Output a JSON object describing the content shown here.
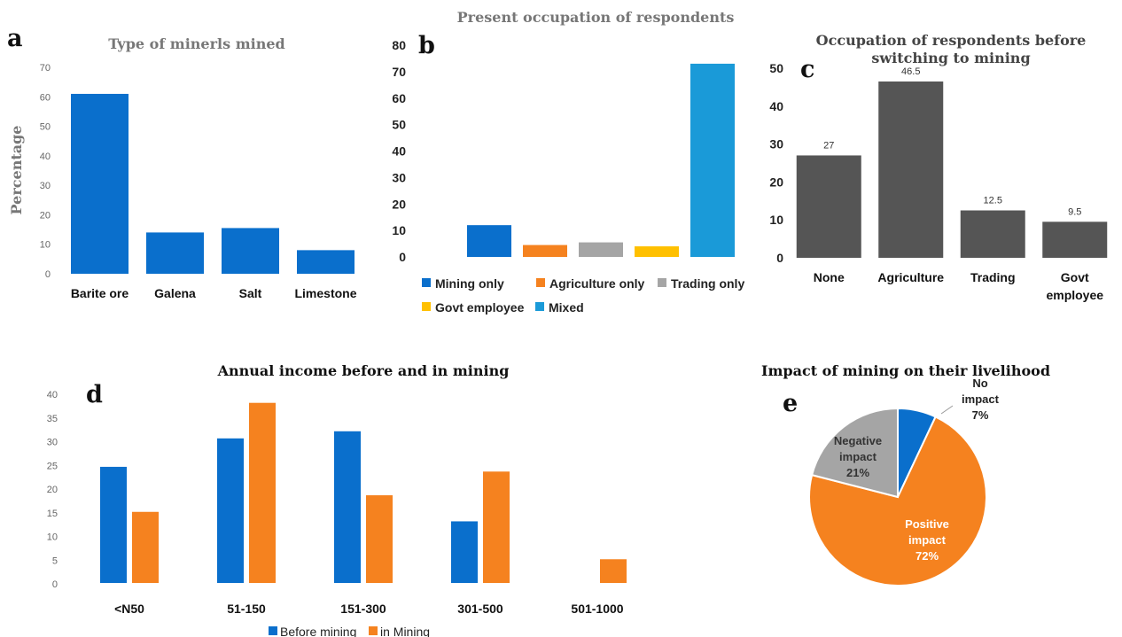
{
  "panels": {
    "a": "a",
    "b": "b",
    "c": "c",
    "d": "d",
    "e": "e"
  },
  "colors": {
    "blue": "#0a6fcc",
    "orange": "#f5821f",
    "gray": "#a5a5a5",
    "yellow": "#ffc000",
    "lightblue": "#1a9ad8",
    "dark": "#555555"
  },
  "chart_data": [
    {
      "id": "a",
      "type": "bar",
      "title": "Type of minerls mined",
      "ylabel": "Percentage",
      "categories": [
        "Barite ore",
        "Galena",
        "Salt",
        "Limestone"
      ],
      "values": [
        61,
        14,
        15.5,
        8
      ],
      "yticks": [
        "0",
        "10",
        "20",
        "30",
        "40",
        "50",
        "60",
        "70"
      ],
      "ylim": [
        0,
        70
      ],
      "color": "#0a6fcc"
    },
    {
      "id": "b",
      "type": "bar",
      "title": "Present occupation of respondents",
      "series": [
        {
          "name": "Mining only",
          "value": 12,
          "color": "#0a6fcc"
        },
        {
          "name": "Agriculture only",
          "value": 4.5,
          "color": "#f5821f"
        },
        {
          "name": "Trading only",
          "value": 5.5,
          "color": "#a5a5a5"
        },
        {
          "name": "Govt employee",
          "value": 4,
          "color": "#ffc000"
        },
        {
          "name": "Mixed",
          "value": 73,
          "color": "#1a9ad8"
        }
      ],
      "yticks": [
        "0",
        "10",
        "20",
        "30",
        "40",
        "50",
        "60",
        "70",
        "80"
      ],
      "ylim": [
        0,
        80
      ]
    },
    {
      "id": "c",
      "type": "bar",
      "title_lines": [
        "Occupation of respondents before",
        "switching to mining"
      ],
      "categories": [
        [
          "None"
        ],
        [
          "Agriculture"
        ],
        [
          "Trading"
        ],
        [
          "Govt",
          "employee"
        ]
      ],
      "values": [
        27,
        46.5,
        12.5,
        9.5
      ],
      "data_labels": [
        "27",
        "46.5",
        "12.5",
        "9.5"
      ],
      "yticks": [
        "0",
        "10",
        "20",
        "30",
        "40",
        "50"
      ],
      "ylim": [
        0,
        50
      ],
      "color": "#555555"
    },
    {
      "id": "d",
      "type": "bar",
      "title": "Annual income before and in mining",
      "categories": [
        "<N50",
        "51-150",
        "151-300",
        "301-500",
        "501-1000"
      ],
      "series": [
        {
          "name": "Before mining",
          "values": [
            24.5,
            30.5,
            32,
            13,
            0
          ],
          "color": "#0a6fcc"
        },
        {
          "name": "in Mining",
          "values": [
            15,
            38,
            18.5,
            23.5,
            5
          ],
          "color": "#f5821f"
        }
      ],
      "yticks": [
        "0",
        "5",
        "10",
        "15",
        "20",
        "25",
        "30",
        "35",
        "40"
      ],
      "ylim": [
        0,
        40
      ]
    },
    {
      "id": "e",
      "type": "pie",
      "title": "Impact of mining on their livelihood",
      "slices": [
        {
          "name": "No impact",
          "label_lines": [
            "No",
            "impact"
          ],
          "pct_label": "7%",
          "value": 7,
          "color": "#0a6fcc"
        },
        {
          "name": "Positive impact",
          "label_lines": [
            "Positive",
            "impact"
          ],
          "pct_label": "72%",
          "value": 72,
          "color": "#f5821f"
        },
        {
          "name": "Negative impact",
          "label_lines": [
            "Negative",
            "impact"
          ],
          "pct_label": "21%",
          "value": 21,
          "color": "#a5a5a5"
        }
      ]
    }
  ]
}
